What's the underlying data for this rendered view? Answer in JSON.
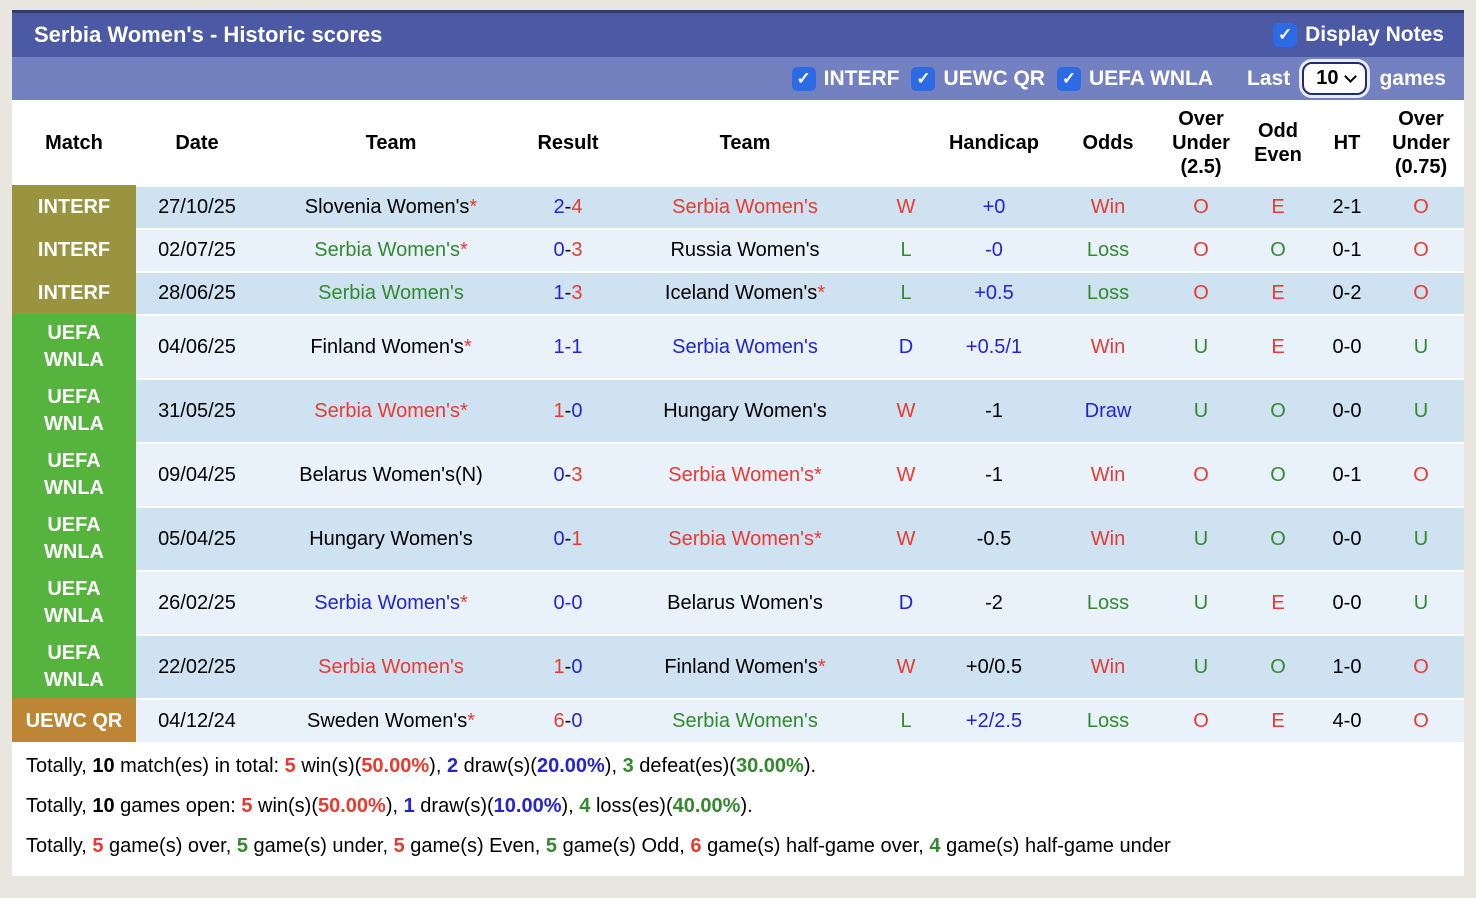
{
  "header": {
    "title": "Serbia Women's - Historic scores",
    "display_notes_label": "Display Notes"
  },
  "filters": {
    "competitions": [
      "INTERF",
      "UEWC QR",
      "UEFA WNLA"
    ],
    "last_label": "Last",
    "games_count": "10",
    "games_label": "games"
  },
  "palette": {
    "title_bar": "#4c59a4",
    "filter_bar": "#7481c1",
    "checkbox_blue": "#2c6be4",
    "row_odd": "#cfe2f1",
    "row_even": "#e9f2fa",
    "interf_bg": "#9a9441",
    "uefa_wnla_bg": "#55b33e",
    "uewc_qr_bg": "#bd8634",
    "red": "#e73b2f",
    "green": "#338a2e",
    "blue": "#2424d2"
  },
  "table": {
    "headers": {
      "match": "Match",
      "date": "Date",
      "team_home": "Team",
      "result": "Result",
      "team_away": "Team",
      "wld": "",
      "handicap": "Handicap",
      "odds": "Odds",
      "over_under_25": "Over\nUnder\n(2.5)",
      "odd_even": "Odd\nEven",
      "ht": "HT",
      "over_under_075": "Over\nUnder\n(0.75)"
    },
    "rows": [
      {
        "comp": "INTERF",
        "compClass": "interf",
        "h": "h1",
        "date": "27/10/25",
        "t1": {
          "n": "Slovenia Women's",
          "c": "black",
          "star": true
        },
        "res": [
          {
            "t": "2",
            "c": "blue"
          },
          {
            "t": "-",
            "c": "black"
          },
          {
            "t": "4",
            "c": "red"
          }
        ],
        "t2": {
          "n": "Serbia Women's",
          "c": "red",
          "star": false
        },
        "wld": {
          "t": "W",
          "c": "red"
        },
        "hcp": {
          "t": "+0",
          "c": "blue"
        },
        "odds": {
          "t": "Win",
          "c": "red"
        },
        "ou25": {
          "t": "O",
          "c": "red"
        },
        "oe": {
          "t": "E",
          "c": "red"
        },
        "ht": "2-1",
        "ou075": {
          "t": "O",
          "c": "red"
        }
      },
      {
        "comp": "INTERF",
        "compClass": "interf",
        "h": "h1",
        "date": "02/07/25",
        "t1": {
          "n": "Serbia Women's",
          "c": "green",
          "star": true
        },
        "res": [
          {
            "t": "0",
            "c": "blue"
          },
          {
            "t": "-",
            "c": "black"
          },
          {
            "t": "3",
            "c": "red"
          }
        ],
        "t2": {
          "n": "Russia Women's",
          "c": "black",
          "star": false
        },
        "wld": {
          "t": "L",
          "c": "green"
        },
        "hcp": {
          "t": "-0",
          "c": "blue"
        },
        "odds": {
          "t": "Loss",
          "c": "green"
        },
        "ou25": {
          "t": "O",
          "c": "red"
        },
        "oe": {
          "t": "O",
          "c": "green"
        },
        "ht": "0-1",
        "ou075": {
          "t": "O",
          "c": "red"
        }
      },
      {
        "comp": "INTERF",
        "compClass": "interf",
        "h": "h1",
        "date": "28/06/25",
        "t1": {
          "n": "Serbia Women's",
          "c": "green",
          "star": false
        },
        "res": [
          {
            "t": "1",
            "c": "blue"
          },
          {
            "t": "-",
            "c": "black"
          },
          {
            "t": "3",
            "c": "red"
          }
        ],
        "t2": {
          "n": "Iceland Women's",
          "c": "black",
          "star": true
        },
        "wld": {
          "t": "L",
          "c": "green"
        },
        "hcp": {
          "t": "+0.5",
          "c": "blue"
        },
        "odds": {
          "t": "Loss",
          "c": "green"
        },
        "ou25": {
          "t": "O",
          "c": "red"
        },
        "oe": {
          "t": "E",
          "c": "red"
        },
        "ht": "0-2",
        "ou075": {
          "t": "O",
          "c": "red"
        }
      },
      {
        "comp": "UEFA\nWNLA",
        "compClass": "uefa",
        "h": "h2",
        "date": "04/06/25",
        "t1": {
          "n": "Finland Women's",
          "c": "black",
          "star": true
        },
        "res": [
          {
            "t": "1-1",
            "c": "blue"
          }
        ],
        "t2": {
          "n": "Serbia Women's",
          "c": "blue",
          "star": false
        },
        "wld": {
          "t": "D",
          "c": "blue"
        },
        "hcp": {
          "t": "+0.5/1",
          "c": "blue"
        },
        "odds": {
          "t": "Win",
          "c": "red"
        },
        "ou25": {
          "t": "U",
          "c": "green"
        },
        "oe": {
          "t": "E",
          "c": "red"
        },
        "ht": "0-0",
        "ou075": {
          "t": "U",
          "c": "green"
        }
      },
      {
        "comp": "UEFA\nWNLA",
        "compClass": "uefa",
        "h": "h2",
        "date": "31/05/25",
        "t1": {
          "n": "Serbia Women's",
          "c": "red",
          "star": true
        },
        "res": [
          {
            "t": "1",
            "c": "red"
          },
          {
            "t": "-",
            "c": "black"
          },
          {
            "t": "0",
            "c": "blue"
          }
        ],
        "t2": {
          "n": "Hungary Women's",
          "c": "black",
          "star": false
        },
        "wld": {
          "t": "W",
          "c": "red"
        },
        "hcp": {
          "t": "-1",
          "c": "black"
        },
        "odds": {
          "t": "Draw",
          "c": "blue"
        },
        "ou25": {
          "t": "U",
          "c": "green"
        },
        "oe": {
          "t": "O",
          "c": "green"
        },
        "ht": "0-0",
        "ou075": {
          "t": "U",
          "c": "green"
        }
      },
      {
        "comp": "UEFA\nWNLA",
        "compClass": "uefa",
        "h": "h2",
        "date": "09/04/25",
        "t1": {
          "n": "Belarus Women's(N)",
          "c": "black",
          "star": false
        },
        "res": [
          {
            "t": "0",
            "c": "blue"
          },
          {
            "t": "-",
            "c": "black"
          },
          {
            "t": "3",
            "c": "red"
          }
        ],
        "t2": {
          "n": "Serbia Women's",
          "c": "red",
          "star": true
        },
        "wld": {
          "t": "W",
          "c": "red"
        },
        "hcp": {
          "t": "-1",
          "c": "black"
        },
        "odds": {
          "t": "Win",
          "c": "red"
        },
        "ou25": {
          "t": "O",
          "c": "red"
        },
        "oe": {
          "t": "O",
          "c": "green"
        },
        "ht": "0-1",
        "ou075": {
          "t": "O",
          "c": "red"
        }
      },
      {
        "comp": "UEFA\nWNLA",
        "compClass": "uefa",
        "h": "h2",
        "date": "05/04/25",
        "t1": {
          "n": "Hungary Women's",
          "c": "black",
          "star": false
        },
        "res": [
          {
            "t": "0",
            "c": "blue"
          },
          {
            "t": "-",
            "c": "black"
          },
          {
            "t": "1",
            "c": "red"
          }
        ],
        "t2": {
          "n": "Serbia Women's",
          "c": "red",
          "star": true
        },
        "wld": {
          "t": "W",
          "c": "red"
        },
        "hcp": {
          "t": "-0.5",
          "c": "black"
        },
        "odds": {
          "t": "Win",
          "c": "red"
        },
        "ou25": {
          "t": "U",
          "c": "green"
        },
        "oe": {
          "t": "O",
          "c": "green"
        },
        "ht": "0-0",
        "ou075": {
          "t": "U",
          "c": "green"
        }
      },
      {
        "comp": "UEFA\nWNLA",
        "compClass": "uefa",
        "h": "h2",
        "date": "26/02/25",
        "t1": {
          "n": "Serbia Women's",
          "c": "blue",
          "star": true
        },
        "res": [
          {
            "t": "0-0",
            "c": "blue"
          }
        ],
        "t2": {
          "n": "Belarus Women's",
          "c": "black",
          "star": false
        },
        "wld": {
          "t": "D",
          "c": "blue"
        },
        "hcp": {
          "t": "-2",
          "c": "black"
        },
        "odds": {
          "t": "Loss",
          "c": "green"
        },
        "ou25": {
          "t": "U",
          "c": "green"
        },
        "oe": {
          "t": "E",
          "c": "red"
        },
        "ht": "0-0",
        "ou075": {
          "t": "U",
          "c": "green"
        }
      },
      {
        "comp": "UEFA\nWNLA",
        "compClass": "uefa",
        "h": "h2",
        "date": "22/02/25",
        "t1": {
          "n": "Serbia Women's",
          "c": "red",
          "star": false
        },
        "res": [
          {
            "t": "1",
            "c": "red"
          },
          {
            "t": "-",
            "c": "black"
          },
          {
            "t": "0",
            "c": "blue"
          }
        ],
        "t2": {
          "n": "Finland Women's",
          "c": "black",
          "star": true
        },
        "wld": {
          "t": "W",
          "c": "red"
        },
        "hcp": {
          "t": "+0/0.5",
          "c": "black"
        },
        "odds": {
          "t": "Win",
          "c": "red"
        },
        "ou25": {
          "t": "U",
          "c": "green"
        },
        "oe": {
          "t": "O",
          "c": "green"
        },
        "ht": "1-0",
        "ou075": {
          "t": "O",
          "c": "red"
        }
      },
      {
        "comp": "UEWC QR",
        "compClass": "uewc",
        "h": "h1",
        "date": "04/12/24",
        "t1": {
          "n": "Sweden Women's",
          "c": "black",
          "star": true
        },
        "res": [
          {
            "t": "6",
            "c": "red"
          },
          {
            "t": "-",
            "c": "black"
          },
          {
            "t": "0",
            "c": "blue"
          }
        ],
        "t2": {
          "n": "Serbia Women's",
          "c": "green",
          "star": false
        },
        "wld": {
          "t": "L",
          "c": "green"
        },
        "hcp": {
          "t": "+2/2.5",
          "c": "blue"
        },
        "odds": {
          "t": "Loss",
          "c": "green"
        },
        "ou25": {
          "t": "O",
          "c": "red"
        },
        "oe": {
          "t": "E",
          "c": "red"
        },
        "ht": "4-0",
        "ou075": {
          "t": "O",
          "c": "red"
        }
      }
    ]
  },
  "summary": {
    "lines": [
      [
        {
          "t": "Totally, "
        },
        {
          "t": "10",
          "b": true
        },
        {
          "t": " match(es) in total: "
        },
        {
          "t": "5",
          "b": true,
          "c": "red"
        },
        {
          "t": " win(s)("
        },
        {
          "t": "50.00%",
          "b": true,
          "c": "red"
        },
        {
          "t": "), "
        },
        {
          "t": "2",
          "b": true,
          "c": "blue"
        },
        {
          "t": " draw(s)("
        },
        {
          "t": "20.00%",
          "b": true,
          "c": "blue"
        },
        {
          "t": "), "
        },
        {
          "t": "3",
          "b": true,
          "c": "green"
        },
        {
          "t": " defeat(es)("
        },
        {
          "t": "30.00%",
          "b": true,
          "c": "green"
        },
        {
          "t": ")."
        }
      ],
      [
        {
          "t": "Totally, "
        },
        {
          "t": "10",
          "b": true
        },
        {
          "t": " games open: "
        },
        {
          "t": "5",
          "b": true,
          "c": "red"
        },
        {
          "t": " win(s)("
        },
        {
          "t": "50.00%",
          "b": true,
          "c": "red"
        },
        {
          "t": "), "
        },
        {
          "t": "1",
          "b": true,
          "c": "blue"
        },
        {
          "t": " draw(s)("
        },
        {
          "t": "10.00%",
          "b": true,
          "c": "blue"
        },
        {
          "t": "), "
        },
        {
          "t": "4",
          "b": true,
          "c": "green"
        },
        {
          "t": " loss(es)("
        },
        {
          "t": "40.00%",
          "b": true,
          "c": "green"
        },
        {
          "t": ")."
        }
      ],
      [
        {
          "t": "Totally, "
        },
        {
          "t": "5",
          "b": true,
          "c": "red"
        },
        {
          "t": " game(s) over, "
        },
        {
          "t": "5",
          "b": true,
          "c": "green"
        },
        {
          "t": " game(s) under, "
        },
        {
          "t": "5",
          "b": true,
          "c": "red"
        },
        {
          "t": " game(s) Even, "
        },
        {
          "t": "5",
          "b": true,
          "c": "green"
        },
        {
          "t": " game(s) Odd, "
        },
        {
          "t": "6",
          "b": true,
          "c": "red"
        },
        {
          "t": " game(s) half-game over, "
        },
        {
          "t": "4",
          "b": true,
          "c": "green"
        },
        {
          "t": " game(s) half-game under"
        }
      ]
    ]
  }
}
